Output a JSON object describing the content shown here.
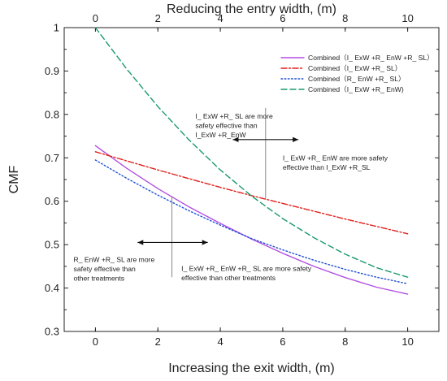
{
  "chart_data": {
    "type": "line",
    "xlabel": "Increasing the exit width, (m)",
    "x2label": "Reducing the entry width, (m)",
    "ylabel": "CMF",
    "xlim": [
      -1,
      11
    ],
    "ylim": [
      0.3,
      1.0
    ],
    "xticks": [
      0,
      2,
      4,
      6,
      8,
      10
    ],
    "yticks": [
      0.3,
      0.4,
      0.5,
      0.6,
      0.7,
      0.8,
      0.9,
      1.0
    ],
    "grid": false,
    "legend_position": "top-right",
    "series": [
      {
        "name": "Combined（I_ ExW +R_ EnW +R_ SL）",
        "color": "#b24fe0",
        "dash": "solid",
        "x": [
          0,
          1,
          2,
          3,
          4,
          5,
          6,
          7,
          8,
          9,
          10
        ],
        "y": [
          0.728,
          0.676,
          0.629,
          0.587,
          0.549,
          0.513,
          0.48,
          0.45,
          0.424,
          0.402,
          0.386
        ]
      },
      {
        "name": "Combined（I_ ExW +R_ SL）",
        "color": "#e0201b",
        "dash": "dashdot",
        "x": [
          0,
          1,
          2,
          3,
          4,
          5,
          6,
          7,
          8,
          9,
          10
        ],
        "y": [
          0.714,
          0.693,
          0.672,
          0.652,
          0.632,
          0.613,
          0.595,
          0.577,
          0.559,
          0.542,
          0.525
        ]
      },
      {
        "name": "Combined（R_ EnW +R_ SL）",
        "color": "#1f4fd6",
        "dash": "dotted",
        "x": [
          0,
          1,
          2,
          3,
          4,
          5,
          6,
          7,
          8,
          9,
          10
        ],
        "y": [
          0.695,
          0.653,
          0.614,
          0.578,
          0.545,
          0.514,
          0.488,
          0.464,
          0.443,
          0.425,
          0.41
        ]
      },
      {
        "name": "Combined（I_ ExW +R_ EnW)",
        "color": "#1a9a6a",
        "dash": "dashed",
        "x": [
          0,
          1,
          2,
          3,
          4,
          5,
          6,
          7,
          8,
          9,
          10
        ],
        "y": [
          1.0,
          0.905,
          0.818,
          0.741,
          0.672,
          0.612,
          0.56,
          0.516,
          0.478,
          0.447,
          0.425
        ]
      }
    ],
    "annotations": [
      {
        "lines": [
          "I_ ExW +R_ SL are more",
          "safety effective than",
          "I_ExW +R_EnW"
        ],
        "arrow": "left",
        "arrow_from": 5.45,
        "arrow_to": 4.4,
        "anchor": [
          3.2,
          0.79
        ]
      },
      {
        "lines": [
          "I_ ExW +R_ EnW  are more safety",
          "effective than I_ExW +R_SL"
        ],
        "arrow": "right",
        "arrow_from": 5.45,
        "arrow_to": 6.5,
        "anchor": [
          6.0,
          0.694
        ]
      },
      {
        "lines": [
          "R_ EnW +R_ SL are more",
          "safety effective than",
          "other treatments"
        ],
        "arrow": "left",
        "arrow_from": 2.45,
        "arrow_to": 1.35,
        "anchor": [
          -0.7,
          0.46
        ]
      },
      {
        "lines": [
          "I_ ExW +R_ EnW +R_ SL are more safety",
          "effective than other treatments"
        ],
        "arrow": "right",
        "arrow_from": 2.45,
        "arrow_to": 3.6,
        "anchor": [
          2.75,
          0.439
        ]
      }
    ],
    "reference_lines": [
      {
        "x": 5.45,
        "y_from": 0.605,
        "y_to": 0.815
      },
      {
        "x": 2.45,
        "y_from": 0.425,
        "y_to": 0.612
      }
    ]
  }
}
